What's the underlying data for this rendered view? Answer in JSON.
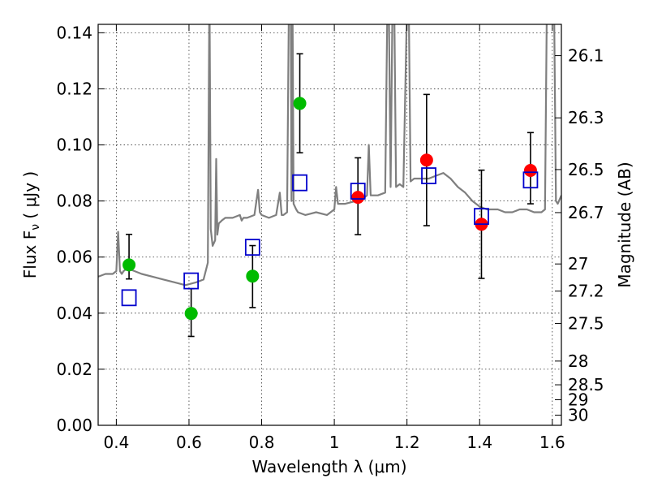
{
  "chart_data": {
    "type": "scatter",
    "title": "",
    "xlabel": "Wavelength  λ (μm)",
    "ylabel": "Flux  F",
    "ylabel_subscript": "ν",
    "ylabel_unit": " ( μJy )",
    "y2label": "Magnitude (AB)",
    "xlim": [
      0.35,
      1.625
    ],
    "ylim": [
      0.0,
      0.143
    ],
    "grid": true,
    "x_ticks": [
      {
        "v": 0.4,
        "label": "0.4"
      },
      {
        "v": 0.6,
        "label": "0.6"
      },
      {
        "v": 0.8,
        "label": "0.8"
      },
      {
        "v": 1.0,
        "label": "1"
      },
      {
        "v": 1.2,
        "label": "1.2"
      },
      {
        "v": 1.4,
        "label": "1.4"
      },
      {
        "v": 1.6,
        "label": "1.6"
      }
    ],
    "y_ticks": [
      {
        "v": 0.0,
        "label": "0.00"
      },
      {
        "v": 0.02,
        "label": "0.02"
      },
      {
        "v": 0.04,
        "label": "0.04"
      },
      {
        "v": 0.06,
        "label": "0.06"
      },
      {
        "v": 0.08,
        "label": "0.08"
      },
      {
        "v": 0.1,
        "label": "0.10"
      },
      {
        "v": 0.12,
        "label": "0.12"
      },
      {
        "v": 0.14,
        "label": "0.14"
      }
    ],
    "y2_ticks": [
      {
        "mag": 26.1,
        "label": "26.1"
      },
      {
        "mag": 26.3,
        "label": "26.3"
      },
      {
        "mag": 26.5,
        "label": "26.5"
      },
      {
        "mag": 26.7,
        "label": "26.7"
      },
      {
        "mag": 27.0,
        "label": "27"
      },
      {
        "mag": 27.2,
        "label": "27.2"
      },
      {
        "mag": 27.5,
        "label": "27.5"
      },
      {
        "mag": 28.0,
        "label": "28"
      },
      {
        "mag": 28.5,
        "label": "28.5"
      },
      {
        "mag": 29.0,
        "label": "29"
      },
      {
        "mag": 30.0,
        "label": "30"
      }
    ],
    "template_spectrum": {
      "color": "#7f7f7f",
      "x": [
        0.35,
        0.37,
        0.39,
        0.4,
        0.405,
        0.41,
        0.415,
        0.42,
        0.43,
        0.45,
        0.47,
        0.5,
        0.53,
        0.56,
        0.59,
        0.62,
        0.64,
        0.652,
        0.656,
        0.6565,
        0.66,
        0.665,
        0.672,
        0.675,
        0.678,
        0.682,
        0.69,
        0.7,
        0.72,
        0.74,
        0.745,
        0.75,
        0.76,
        0.78,
        0.79,
        0.795,
        0.8,
        0.82,
        0.84,
        0.85,
        0.855,
        0.86,
        0.87,
        0.875,
        0.88,
        0.882,
        0.885,
        0.888,
        0.895,
        0.9,
        0.92,
        0.95,
        0.98,
        1.0,
        1.005,
        1.01,
        1.03,
        1.06,
        1.08,
        1.09,
        1.095,
        1.1,
        1.12,
        1.14,
        1.146,
        1.15,
        1.155,
        1.16,
        1.165,
        1.17,
        1.18,
        1.19,
        1.2,
        1.205,
        1.21,
        1.22,
        1.24,
        1.26,
        1.28,
        1.3,
        1.32,
        1.34,
        1.36,
        1.38,
        1.4,
        1.42,
        1.45,
        1.47,
        1.49,
        1.51,
        1.53,
        1.55,
        1.57,
        1.58,
        1.585,
        1.59,
        1.6,
        1.605,
        1.61,
        1.615,
        1.625
      ],
      "y": [
        0.053,
        0.054,
        0.054,
        0.055,
        0.069,
        0.055,
        0.054,
        0.055,
        0.056,
        0.055,
        0.054,
        0.053,
        0.052,
        0.051,
        0.05,
        0.051,
        0.052,
        0.058,
        0.15,
        0.15,
        0.07,
        0.064,
        0.066,
        0.095,
        0.068,
        0.072,
        0.073,
        0.074,
        0.074,
        0.075,
        0.073,
        0.074,
        0.074,
        0.075,
        0.084,
        0.076,
        0.075,
        0.074,
        0.075,
        0.083,
        0.075,
        0.075,
        0.076,
        0.15,
        0.15,
        0.08,
        0.15,
        0.079,
        0.077,
        0.076,
        0.075,
        0.076,
        0.075,
        0.077,
        0.085,
        0.079,
        0.079,
        0.08,
        0.081,
        0.082,
        0.1,
        0.082,
        0.082,
        0.083,
        0.15,
        0.15,
        0.085,
        0.15,
        0.15,
        0.085,
        0.086,
        0.085,
        0.15,
        0.15,
        0.087,
        0.088,
        0.088,
        0.088,
        0.089,
        0.09,
        0.088,
        0.085,
        0.083,
        0.08,
        0.078,
        0.077,
        0.077,
        0.076,
        0.076,
        0.077,
        0.077,
        0.076,
        0.076,
        0.077,
        0.15,
        0.15,
        0.15,
        0.15,
        0.08,
        0.079,
        0.082
      ]
    },
    "series": [
      {
        "marker": "circle",
        "color": "#00bb00",
        "points": [
          {
            "x": 0.435,
            "y": 0.0572,
            "yerr_low": 0.0522,
            "yerr_high": 0.0681
          },
          {
            "x": 0.606,
            "y": 0.0399,
            "yerr_low": 0.0317,
            "yerr_high": 0.0487
          },
          {
            "x": 0.775,
            "y": 0.0532,
            "yerr_low": 0.042,
            "yerr_high": 0.0641
          },
          {
            "x": 0.905,
            "y": 0.1148,
            "yerr_low": 0.0972,
            "yerr_high": 0.1325
          }
        ]
      },
      {
        "marker": "circle",
        "color": "#ff0000",
        "points": [
          {
            "x": 1.065,
            "y": 0.0813,
            "yerr_low": 0.068,
            "yerr_high": 0.0954
          },
          {
            "x": 1.254,
            "y": 0.0946,
            "yerr_low": 0.0712,
            "yerr_high": 0.118
          },
          {
            "x": 1.405,
            "y": 0.0717,
            "yerr_low": 0.0524,
            "yerr_high": 0.091
          },
          {
            "x": 1.54,
            "y": 0.0909,
            "yerr_low": 0.079,
            "yerr_high": 0.1044
          }
        ]
      },
      {
        "marker": "open-square",
        "color": "#0000cc",
        "points": [
          {
            "x": 0.435,
            "y": 0.0455
          },
          {
            "x": 0.606,
            "y": 0.0515
          },
          {
            "x": 0.775,
            "y": 0.0635
          },
          {
            "x": 0.905,
            "y": 0.0865
          },
          {
            "x": 1.065,
            "y": 0.0835
          },
          {
            "x": 1.26,
            "y": 0.089
          },
          {
            "x": 1.405,
            "y": 0.0745
          },
          {
            "x": 1.54,
            "y": 0.0875
          }
        ]
      }
    ]
  }
}
